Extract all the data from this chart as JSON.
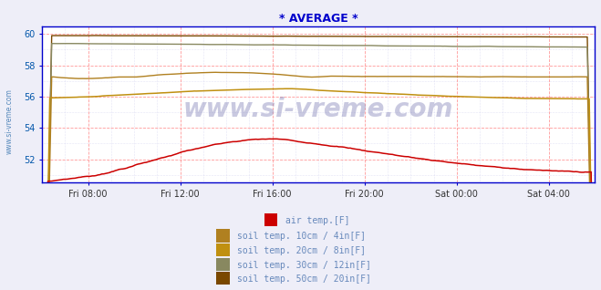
{
  "title": "* AVERAGE *",
  "title_color": "#0000cc",
  "bg_color": "#eeeef8",
  "plot_bg_color": "#ffffff",
  "ytick_color": "#0055aa",
  "grid_major_color": "#ff9999",
  "grid_minor_color": "#ccccee",
  "watermark": "www.si-vreme.com",
  "x_labels": [
    "Fri 08:00",
    "Fri 12:00",
    "Fri 16:00",
    "Fri 20:00",
    "Sat 00:00",
    "Sat 04:00"
  ],
  "xlim": [
    0,
    1
  ],
  "ylim": [
    50.5,
    60.5
  ],
  "yticks": [
    52,
    54,
    56,
    58,
    60
  ],
  "spine_color": "#0000cc",
  "series_colors": {
    "air": "#cc0000",
    "soil10": "#b08020",
    "soil20": "#c09010",
    "soil30": "#888860",
    "soil50": "#7a4800"
  },
  "legend_labels": [
    "air temp.[F]",
    "soil temp. 10cm / 4in[F]",
    "soil temp. 20cm / 8in[F]",
    "soil temp. 30cm / 12in[F]",
    "soil temp. 50cm / 20in[F]"
  ],
  "legend_colors": [
    "#cc0000",
    "#b08020",
    "#c09010",
    "#888860",
    "#7a4800"
  ],
  "tick_label_color": "#333333",
  "left_label_color": "#5588bb"
}
